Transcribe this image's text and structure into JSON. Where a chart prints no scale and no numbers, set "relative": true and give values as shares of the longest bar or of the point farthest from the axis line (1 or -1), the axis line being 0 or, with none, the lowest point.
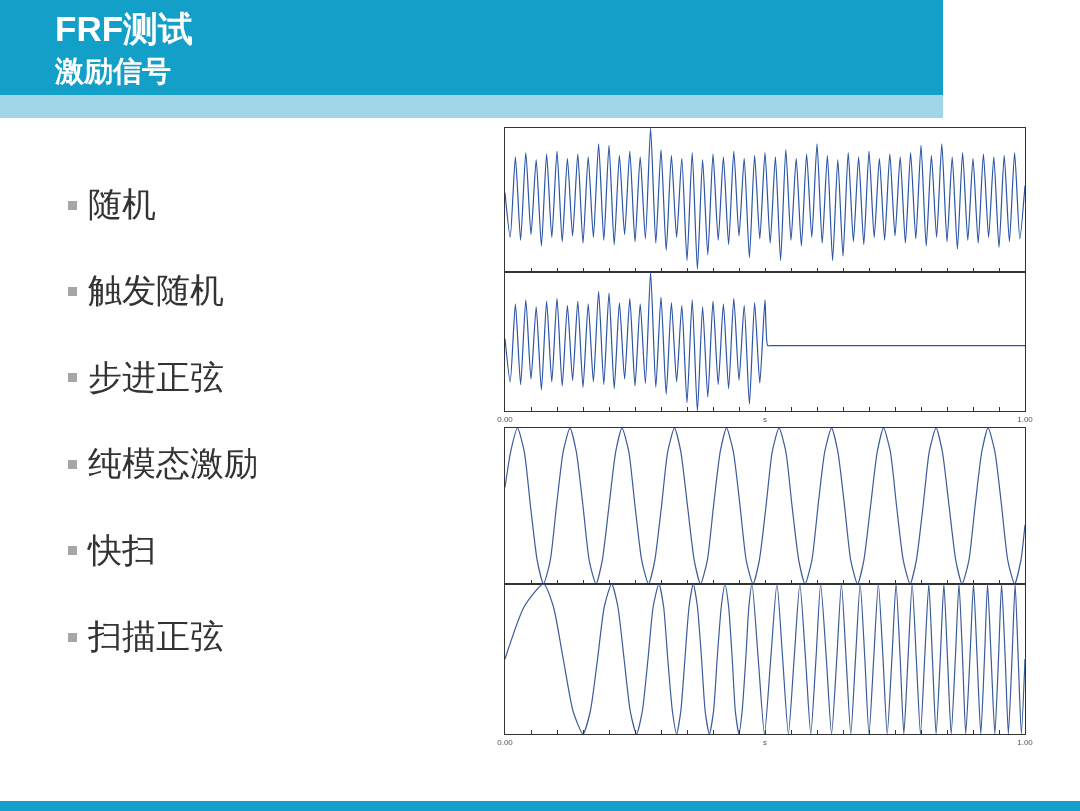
{
  "chart_data": [
    {
      "type": "other",
      "title": "FRF测试",
      "subtitle": "激励信号",
      "annotations": [
        "随机",
        "触发随机",
        "步进正弦",
        "纯模态激励",
        "快扫",
        "扫描正弦"
      ]
    },
    {
      "type": "line",
      "relative": true,
      "tick_labels": false,
      "xlim": [
        0,
        1
      ],
      "xticks": [
        0,
        0.05,
        0.1,
        0.15,
        0.2,
        0.25,
        0.3,
        0.35,
        0.4,
        0.45,
        0.5,
        0.55,
        0.6,
        0.65,
        0.7,
        0.75,
        0.8,
        0.85,
        0.9,
        0.95,
        1
      ],
      "x": [
        0,
        0.01,
        0.02,
        0.03,
        0.04,
        0.05,
        0.06,
        0.07,
        0.08,
        0.09,
        0.1,
        0.11,
        0.12,
        0.13,
        0.14,
        0.15,
        0.16,
        0.17,
        0.18,
        0.19,
        0.2,
        0.21,
        0.22,
        0.23,
        0.24,
        0.25,
        0.26,
        0.27,
        0.28,
        0.29,
        0.3,
        0.31,
        0.32,
        0.33,
        0.34,
        0.35,
        0.36,
        0.37,
        0.38,
        0.39,
        0.4,
        0.41,
        0.42,
        0.43,
        0.44,
        0.45,
        0.46,
        0.47,
        0.48,
        0.49,
        0.5,
        0.51,
        0.52,
        0.53,
        0.54,
        0.55,
        0.56,
        0.57,
        0.58,
        0.59,
        0.6,
        0.61,
        0.62,
        0.63,
        0.64,
        0.65,
        0.66,
        0.67,
        0.68,
        0.69,
        0.7,
        0.71,
        0.72,
        0.73,
        0.74,
        0.75,
        0.76,
        0.77,
        0.78,
        0.79,
        0.8,
        0.81,
        0.82,
        0.83,
        0.84,
        0.85,
        0.86,
        0.87,
        0.88,
        0.89,
        0.9,
        0.91,
        0.92,
        0.93,
        0.94,
        0.95,
        0.96,
        0.97,
        0.98,
        0.99,
        1
      ],
      "series": [
        {
          "color": "#2b55a6",
          "values": [
            0.55,
            0.24,
            0.8,
            0.22,
            0.83,
            0.26,
            0.78,
            0.18,
            0.82,
            0.24,
            0.84,
            0.21,
            0.79,
            0.25,
            0.82,
            0.2,
            0.8,
            0.24,
            0.89,
            0.22,
            0.88,
            0.19,
            0.81,
            0.26,
            0.84,
            0.21,
            0.8,
            0.23,
            1.0,
            0.2,
            0.85,
            0.15,
            0.81,
            0.24,
            0.79,
            0.08,
            0.83,
            0.02,
            0.78,
            0.12,
            0.82,
            0.22,
            0.8,
            0.19,
            0.84,
            0.25,
            0.79,
            0.1,
            0.81,
            0.23,
            0.83,
            0.2,
            0.8,
            0.08,
            0.85,
            0.22,
            0.79,
            0.18,
            0.82,
            0.24,
            0.89,
            0.2,
            0.81,
            0.08,
            0.78,
            0.11,
            0.83,
            0.21,
            0.8,
            0.19,
            0.84,
            0.24,
            0.79,
            0.22,
            0.82,
            0.25,
            0.8,
            0.2,
            0.83,
            0.23,
            0.88,
            0.18,
            0.81,
            0.24,
            0.89,
            0.21,
            0.8,
            0.16,
            0.83,
            0.22,
            0.79,
            0.2,
            0.82,
            0.24,
            0.8,
            0.17,
            0.81,
            0.21,
            0.83,
            0.23,
            0.6
          ]
        }
      ]
    },
    {
      "type": "line",
      "relative": true,
      "tick_labels": "x",
      "xlabel": "s",
      "xlim": [
        0,
        1
      ],
      "xticks": [
        {
          "value": 0,
          "label": "0.00"
        },
        {
          "value": 0.05,
          "label": null
        },
        {
          "value": 0.1,
          "label": null
        },
        {
          "value": 0.15,
          "label": null
        },
        {
          "value": 0.2,
          "label": null
        },
        {
          "value": 0.25,
          "label": null
        },
        {
          "value": 0.3,
          "label": null
        },
        {
          "value": 0.35,
          "label": null
        },
        {
          "value": 0.4,
          "label": null
        },
        {
          "value": 0.45,
          "label": null
        },
        {
          "value": 0.5,
          "label": null
        },
        {
          "value": 0.55,
          "label": null
        },
        {
          "value": 0.6,
          "label": null
        },
        {
          "value": 0.65,
          "label": null
        },
        {
          "value": 0.7,
          "label": null
        },
        {
          "value": 0.75,
          "label": null
        },
        {
          "value": 0.8,
          "label": null
        },
        {
          "value": 0.85,
          "label": null
        },
        {
          "value": 0.9,
          "label": null
        },
        {
          "value": 0.95,
          "label": null
        },
        {
          "value": 1,
          "label": "1.00"
        }
      ],
      "x": [
        0,
        0.01,
        0.02,
        0.03,
        0.04,
        0.05,
        0.06,
        0.07,
        0.08,
        0.09,
        0.1,
        0.11,
        0.12,
        0.13,
        0.14,
        0.15,
        0.16,
        0.17,
        0.18,
        0.19,
        0.2,
        0.21,
        0.22,
        0.23,
        0.24,
        0.25,
        0.26,
        0.27,
        0.28,
        0.29,
        0.3,
        0.31,
        0.32,
        0.33,
        0.34,
        0.35,
        0.36,
        0.37,
        0.38,
        0.39,
        0.4,
        0.41,
        0.42,
        0.43,
        0.44,
        0.45,
        0.46,
        0.47,
        0.48,
        0.49,
        0.5,
        0.505,
        0.51,
        1
      ],
      "series": [
        {
          "color": "#2b55a6",
          "values": [
            0.52,
            0.21,
            0.77,
            0.19,
            0.8,
            0.23,
            0.75,
            0.15,
            0.79,
            0.21,
            0.81,
            0.18,
            0.76,
            0.22,
            0.79,
            0.17,
            0.77,
            0.21,
            0.86,
            0.19,
            0.85,
            0.16,
            0.78,
            0.23,
            0.81,
            0.18,
            0.77,
            0.2,
            1.0,
            0.17,
            0.82,
            0.12,
            0.78,
            0.21,
            0.76,
            0.06,
            0.8,
            0.0,
            0.75,
            0.1,
            0.79,
            0.19,
            0.77,
            0.16,
            0.81,
            0.22,
            0.76,
            0.05,
            0.78,
            0.2,
            0.8,
            0.47,
            0.47,
            0.47
          ]
        }
      ]
    },
    {
      "type": "line",
      "relative": true,
      "tick_labels": false,
      "xlim": [
        0,
        1
      ],
      "xticks": [
        0,
        0.05,
        0.1,
        0.15,
        0.2,
        0.25,
        0.3,
        0.35,
        0.4,
        0.45,
        0.5,
        0.55,
        0.6,
        0.65,
        0.7,
        0.75,
        0.8,
        0.85,
        0.9,
        0.95,
        1
      ],
      "x": [
        0,
        0.011,
        0.024,
        0.037,
        0.049,
        0.062,
        0.074,
        0.087,
        0.099,
        0.112,
        0.125,
        0.137,
        0.15,
        0.162,
        0.175,
        0.187,
        0.2,
        0.213,
        0.225,
        0.238,
        0.25,
        0.263,
        0.276,
        0.288,
        0.301,
        0.313,
        0.326,
        0.338,
        0.351,
        0.364,
        0.376,
        0.389,
        0.401,
        0.414,
        0.426,
        0.439,
        0.452,
        0.464,
        0.477,
        0.489,
        0.502,
        0.514,
        0.527,
        0.54,
        0.552,
        0.565,
        0.577,
        0.59,
        0.602,
        0.615,
        0.628,
        0.64,
        0.653,
        0.665,
        0.678,
        0.69,
        0.703,
        0.716,
        0.728,
        0.741,
        0.753,
        0.766,
        0.779,
        0.791,
        0.804,
        0.816,
        0.829,
        0.841,
        0.854,
        0.867,
        0.879,
        0.892,
        0.904,
        0.917,
        0.929,
        0.942,
        0.955,
        0.967,
        0.98,
        0.992,
        1
      ],
      "series": [
        {
          "color": "#3b5b99",
          "values": [
            0.62,
            0.85,
            1,
            0.85,
            0.5,
            0.15,
            0,
            0.15,
            0.5,
            0.85,
            1,
            0.85,
            0.5,
            0.15,
            0,
            0.15,
            0.5,
            0.85,
            1,
            0.85,
            0.5,
            0.15,
            0,
            0.15,
            0.5,
            0.85,
            1,
            0.85,
            0.5,
            0.15,
            0,
            0.15,
            0.5,
            0.85,
            1,
            0.85,
            0.5,
            0.15,
            0,
            0.15,
            0.5,
            0.85,
            1,
            0.85,
            0.5,
            0.15,
            0,
            0.15,
            0.5,
            0.85,
            1,
            0.85,
            0.5,
            0.15,
            0,
            0.15,
            0.5,
            0.85,
            1,
            0.85,
            0.5,
            0.15,
            0,
            0.15,
            0.5,
            0.85,
            1,
            0.85,
            0.5,
            0.15,
            0,
            0.15,
            0.5,
            0.85,
            1,
            0.85,
            0.5,
            0.15,
            0,
            0.15,
            0.38
          ]
        }
      ]
    },
    {
      "type": "line",
      "relative": true,
      "tick_labels": "x",
      "xlabel": "s",
      "xlim": [
        0,
        1
      ],
      "xticks": [
        {
          "value": 0,
          "label": "0.00"
        },
        {
          "value": 0.05,
          "label": null
        },
        {
          "value": 0.1,
          "label": null
        },
        {
          "value": 0.15,
          "label": null
        },
        {
          "value": 0.2,
          "label": null
        },
        {
          "value": 0.25,
          "label": null
        },
        {
          "value": 0.3,
          "label": null
        },
        {
          "value": 0.35,
          "label": null
        },
        {
          "value": 0.4,
          "label": null
        },
        {
          "value": 0.45,
          "label": null
        },
        {
          "value": 0.5,
          "label": null
        },
        {
          "value": 0.55,
          "label": null
        },
        {
          "value": 0.6,
          "label": null
        },
        {
          "value": 0.65,
          "label": null
        },
        {
          "value": 0.7,
          "label": null
        },
        {
          "value": 0.75,
          "label": null
        },
        {
          "value": 0.8,
          "label": null
        },
        {
          "value": 0.85,
          "label": null
        },
        {
          "value": 0.9,
          "label": null
        },
        {
          "value": 0.95,
          "label": null
        },
        {
          "value": 1,
          "label": "1.00"
        }
      ],
      "x": [
        0,
        0.037,
        0.074,
        0.093,
        0.112,
        0.131,
        0.15,
        0.164,
        0.178,
        0.191,
        0.205,
        0.217,
        0.229,
        0.241,
        0.253,
        0.264,
        0.275,
        0.285,
        0.296,
        0.305,
        0.313,
        0.322,
        0.33,
        0.338,
        0.346,
        0.354,
        0.362,
        0.37,
        0.378,
        0.385,
        0.393,
        0.401,
        0.408,
        0.416,
        0.423,
        0.43,
        0.437,
        0.443,
        0.45,
        0.456,
        0.463,
        0.469,
        0.475,
        0.487,
        0.499,
        0.511,
        0.523,
        0.534,
        0.545,
        0.556,
        0.567,
        0.578,
        0.588,
        0.598,
        0.607,
        0.618,
        0.628,
        0.638,
        0.647,
        0.656,
        0.665,
        0.674,
        0.683,
        0.692,
        0.7,
        0.709,
        0.718,
        0.727,
        0.735,
        0.744,
        0.752,
        0.76,
        0.767,
        0.775,
        0.783,
        0.791,
        0.799,
        0.807,
        0.815,
        0.822,
        0.829,
        0.837,
        0.844,
        0.851,
        0.858,
        0.866,
        0.873,
        0.88,
        0.886,
        0.894,
        0.901,
        0.908,
        0.915,
        0.922,
        0.928,
        0.935,
        0.942,
        0.949,
        0.955,
        0.962,
        0.968,
        0.975,
        0.981,
        0.987,
        0.993,
        1
      ],
      "series": [
        {
          "color": "#3b5b99",
          "values": [
            0.5,
            0.85,
            1,
            0.85,
            0.5,
            0.15,
            0,
            0.15,
            0.5,
            0.85,
            1,
            0.85,
            0.5,
            0.15,
            0,
            0.15,
            0.5,
            0.85,
            1,
            0.85,
            0.5,
            0.15,
            0,
            0.15,
            0.5,
            0.85,
            1,
            0.85,
            0.5,
            0.15,
            0,
            0.15,
            0.5,
            0.85,
            1,
            0.85,
            0.5,
            0.15,
            0,
            0.15,
            0.5,
            0.85,
            1,
            0.5,
            0,
            0.5,
            1,
            0.5,
            0,
            0.5,
            1,
            0.5,
            0,
            0.5,
            1,
            0.5,
            0,
            0.5,
            1,
            0.5,
            0,
            0.5,
            1,
            0.5,
            0,
            0.5,
            1,
            0.5,
            0,
            0.5,
            1,
            0.5,
            0,
            0.5,
            1,
            0.5,
            0,
            0.5,
            1,
            0.5,
            0,
            0.5,
            1,
            0.5,
            0,
            0.5,
            1,
            0.5,
            0,
            0.5,
            1,
            0.5,
            0,
            0.5,
            1,
            0.5,
            0,
            0.5,
            1,
            0.5,
            0,
            0.5,
            1,
            0.5,
            0,
            0.5
          ]
        }
      ]
    }
  ]
}
